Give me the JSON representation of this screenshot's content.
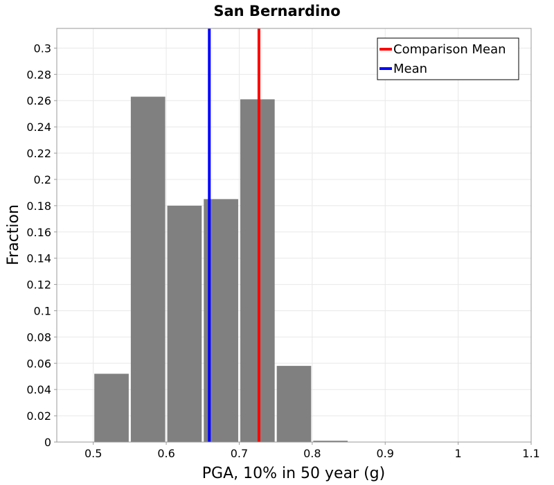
{
  "chart_data": {
    "type": "bar",
    "title": "San Bernardino",
    "xlabel": "PGA, 10% in 50 year (g)",
    "ylabel": "Fraction",
    "xlim": [
      0.45,
      1.1
    ],
    "ylim": [
      0,
      0.315
    ],
    "x_ticks": [
      "0.5",
      "0.6",
      "0.7",
      "0.8",
      "0.9",
      "1",
      "1.1"
    ],
    "x_tick_values": [
      0.5,
      0.6,
      0.7,
      0.8,
      0.9,
      1.0,
      1.1
    ],
    "y_ticks": [
      "0",
      "0.02",
      "0.04",
      "0.06",
      "0.08",
      "0.1",
      "0.12",
      "0.14",
      "0.16",
      "0.18",
      "0.2",
      "0.22",
      "0.24",
      "0.26",
      "0.28",
      "0.3"
    ],
    "y_tick_values": [
      0,
      0.02,
      0.04,
      0.06,
      0.08,
      0.1,
      0.12,
      0.14,
      0.16,
      0.18,
      0.2,
      0.22,
      0.24,
      0.26,
      0.28,
      0.3
    ],
    "bins": [
      {
        "x_start": 0.5,
        "x_end": 0.55,
        "value": 0.052
      },
      {
        "x_start": 0.55,
        "x_end": 0.6,
        "value": 0.263
      },
      {
        "x_start": 0.6,
        "x_end": 0.65,
        "value": 0.18
      },
      {
        "x_start": 0.65,
        "x_end": 0.7,
        "value": 0.185
      },
      {
        "x_start": 0.7,
        "x_end": 0.75,
        "value": 0.261
      },
      {
        "x_start": 0.75,
        "x_end": 0.8,
        "value": 0.058
      },
      {
        "x_start": 0.8,
        "x_end": 0.85,
        "value": 0.001
      }
    ],
    "bar_color": "#808080",
    "lines": [
      {
        "name": "Comparison Mean",
        "x": 0.727,
        "color": "#ff0000"
      },
      {
        "name": "Mean",
        "x": 0.659,
        "color": "#0000ff"
      }
    ],
    "grid": true,
    "legend_position": "top-right"
  }
}
